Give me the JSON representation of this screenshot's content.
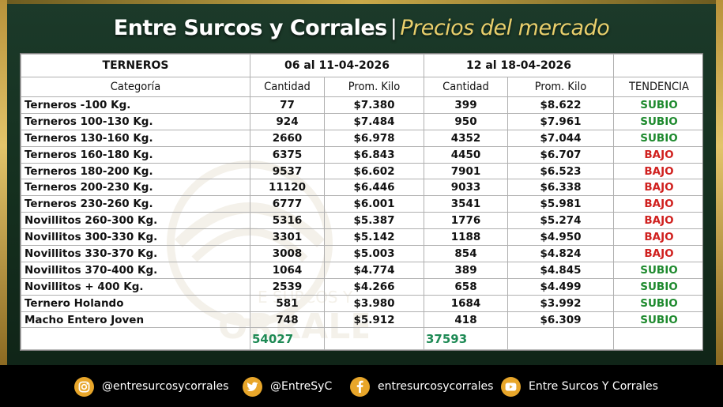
{
  "header": {
    "title_main": "Entre Surcos y Corrales",
    "title_sep": "|",
    "title_sub": "Precios del mercado"
  },
  "table": {
    "group_header": "TERNEROS",
    "period1": "06 al 11-04-2026",
    "period2": "12 al 18-04-2026",
    "col_categoria": "Categoría",
    "col_cantidad": "Cantidad",
    "col_prom": "Prom. Kilo",
    "col_tendencia": "TENDENCIA",
    "rows": [
      {
        "cat": "Terneros -100 Kg.",
        "c1": "77",
        "p1": "$7.380",
        "c2": "399",
        "p2": "$8.622",
        "trend": "SUBIO"
      },
      {
        "cat": "Terneros 100-130 Kg.",
        "c1": "924",
        "p1": "$7.484",
        "c2": "950",
        "p2": "$7.961",
        "trend": "SUBIO"
      },
      {
        "cat": "Terneros 130-160 Kg.",
        "c1": "2660",
        "p1": "$6.978",
        "c2": "4352",
        "p2": "$7.044",
        "trend": "SUBIO"
      },
      {
        "cat": "Terneros 160-180 Kg.",
        "c1": "6375",
        "p1": "$6.843",
        "c2": "4450",
        "p2": "$6.707",
        "trend": "BAJO"
      },
      {
        "cat": "Terneros 180-200 Kg.",
        "c1": "9537",
        "p1": "$6.602",
        "c2": "7901",
        "p2": "$6.523",
        "trend": "BAJO"
      },
      {
        "cat": "Terneros 200-230 Kg.",
        "c1": "11120",
        "p1": "$6.446",
        "c2": "9033",
        "p2": "$6.338",
        "trend": "BAJO"
      },
      {
        "cat": "Terneros 230-260 Kg.",
        "c1": "6777",
        "p1": "$6.001",
        "c2": "3541",
        "p2": "$5.981",
        "trend": "BAJO"
      },
      {
        "cat": "Novillitos 260-300 Kg.",
        "c1": "5316",
        "p1": "$5.387",
        "c2": "1776",
        "p2": "$5.274",
        "trend": "BAJO"
      },
      {
        "cat": "Novillitos 300-330 Kg.",
        "c1": "3301",
        "p1": "$5.142",
        "c2": "1188",
        "p2": "$4.950",
        "trend": "BAJO"
      },
      {
        "cat": "Novillitos 330-370 Kg.",
        "c1": "3008",
        "p1": "$5.003",
        "c2": "854",
        "p2": "$4.824",
        "trend": "BAJO"
      },
      {
        "cat": "Novillitos 370-400 Kg.",
        "c1": "1064",
        "p1": "$4.774",
        "c2": "389",
        "p2": "$4.845",
        "trend": "SUBIO"
      },
      {
        "cat": "Novillitos  + 400 Kg.",
        "c1": "2539",
        "p1": "$4.266",
        "c2": "658",
        "p2": "$4.499",
        "trend": "SUBIO"
      },
      {
        "cat": "Ternero Holando",
        "c1": "581",
        "p1": "$3.980",
        "c2": "1684",
        "p2": "$3.992",
        "trend": "SUBIO"
      },
      {
        "cat": "Macho Entero Joven",
        "c1": "748",
        "p1": "$5.912",
        "c2": "418",
        "p2": "$6.309",
        "trend": "SUBIO"
      }
    ],
    "total1": "54027",
    "total2": "37593",
    "trend_colors": {
      "SUBIO": "#1e8a2e",
      "BAJO": "#d0201e"
    }
  },
  "watermark": {
    "logo_text_top": "E SURCOS Y",
    "logo_text_bottom": "ORRALES"
  },
  "footer": {
    "instagram": {
      "icon": "instagram-icon",
      "handle": "@entresurcosycorrales"
    },
    "twitter": {
      "icon": "twitter-icon",
      "handle": "@EntreSyC"
    },
    "facebook": {
      "icon": "facebook-icon",
      "handle": "entresurcosycorrales"
    },
    "youtube": {
      "icon": "youtube-icon",
      "handle": "Entre Surcos Y Corrales"
    }
  }
}
